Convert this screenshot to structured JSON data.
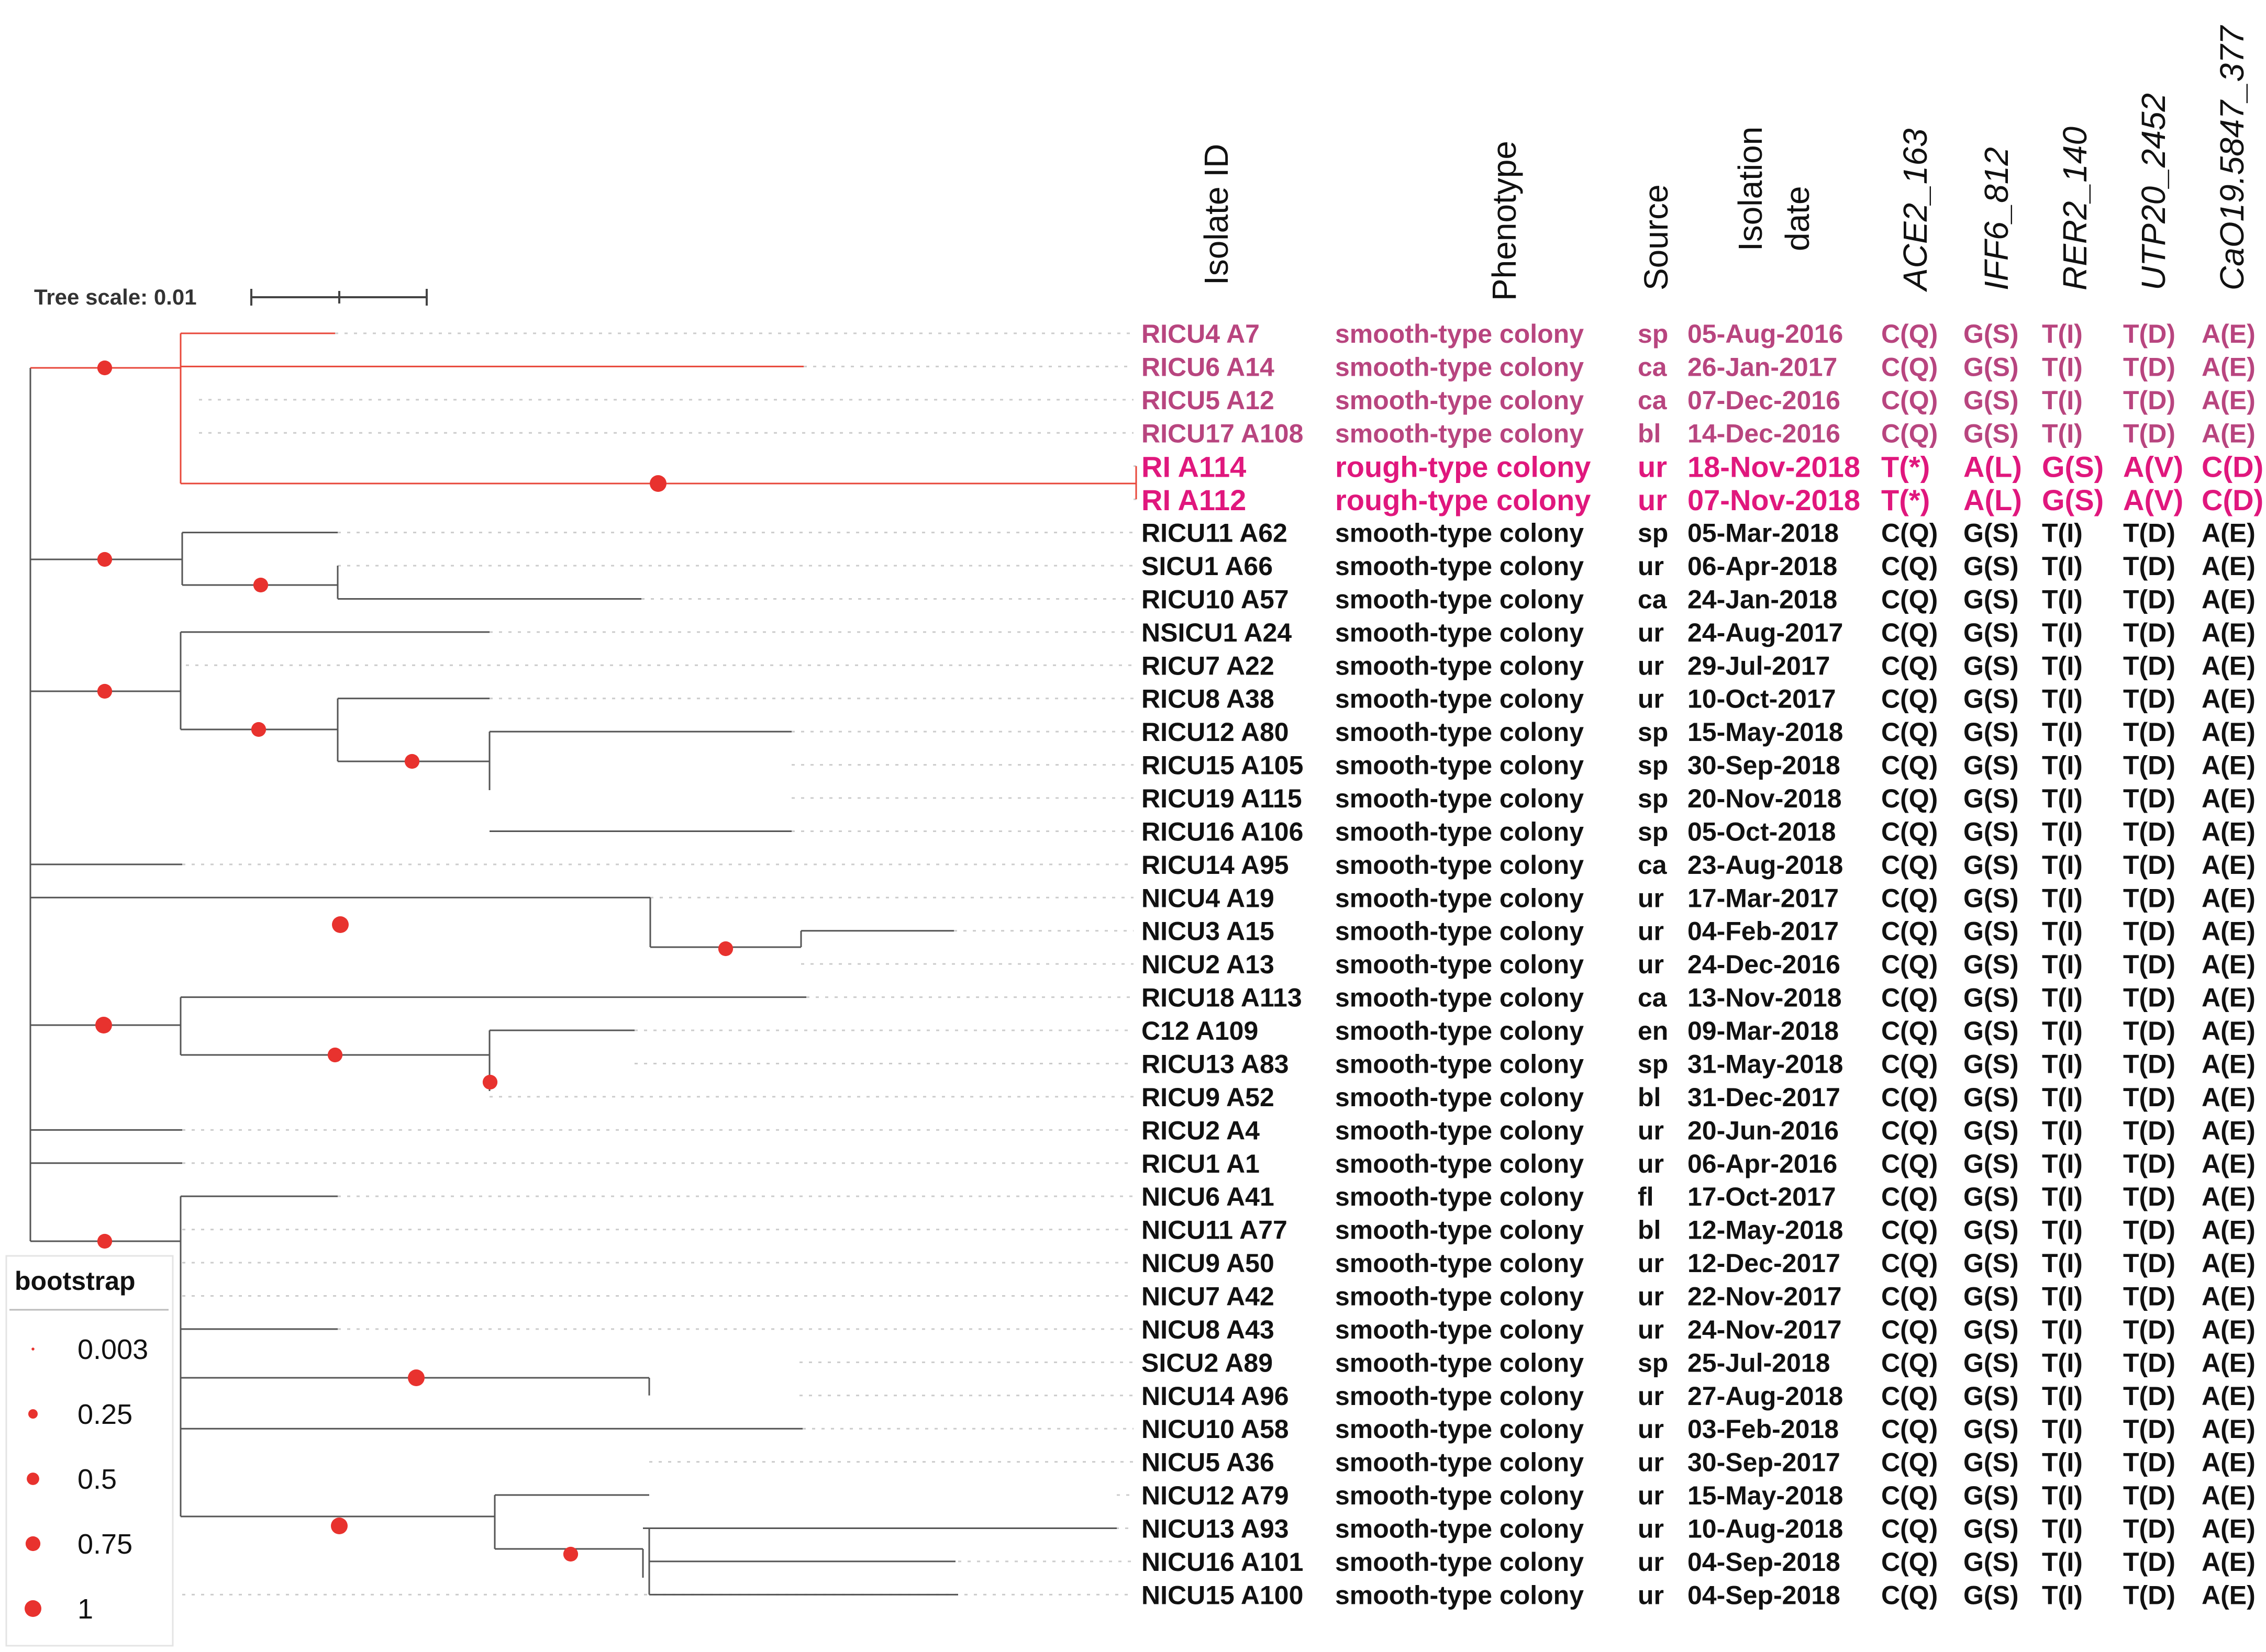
{
  "tree_scale": {
    "label": "Tree scale: 0.01"
  },
  "headers": [
    {
      "key": "isolate",
      "label": "Isolate ID",
      "italic": false
    },
    {
      "key": "phenotype",
      "label": "Phenotype",
      "italic": false
    },
    {
      "key": "source",
      "label": "Source",
      "italic": false
    },
    {
      "key": "isolation_date_1",
      "label": "Isolation",
      "italic": false
    },
    {
      "key": "isolation_date_2",
      "label": "date",
      "italic": false
    },
    {
      "key": "ace2",
      "label": "ACE2_163",
      "italic": true
    },
    {
      "key": "iff6",
      "label": "IFF6_812",
      "italic": true
    },
    {
      "key": "rer2",
      "label": "RER2_140",
      "italic": true
    },
    {
      "key": "utp20",
      "label": "UTP20_2452",
      "italic": true
    },
    {
      "key": "cao19",
      "label": "CaO19.5847_377",
      "italic": true
    }
  ],
  "legend": {
    "title": "bootstrap",
    "items": [
      {
        "label": "0.003",
        "value": 0.003
      },
      {
        "label": "0.25",
        "value": 0.25
      },
      {
        "label": "0.5",
        "value": 0.5
      },
      {
        "label": "0.75",
        "value": 0.75
      },
      {
        "label": "1",
        "value": 1
      }
    ]
  },
  "colors": {
    "group_pink": "#b8457f",
    "group_magenta": "#e0177d",
    "default_text": "#111111",
    "branch": "#555555",
    "branch_red": "#e8473a",
    "node": "#e8322e",
    "dotted": "#cccccc"
  },
  "rows": [
    {
      "isolate": "RICU4 A7",
      "phenotype": "smooth-type colony",
      "source": "sp",
      "date": "05-Aug-2016",
      "ace2": "C(Q)",
      "iff6": "G(S)",
      "rer2": "T(I)",
      "utp20": "T(D)",
      "cao19": "A(E)",
      "group": "pink"
    },
    {
      "isolate": "RICU6 A14",
      "phenotype": "smooth-type colony",
      "source": "ca",
      "date": "26-Jan-2017",
      "ace2": "C(Q)",
      "iff6": "G(S)",
      "rer2": "T(I)",
      "utp20": "T(D)",
      "cao19": "A(E)",
      "group": "pink"
    },
    {
      "isolate": "RICU5 A12",
      "phenotype": "smooth-type colony",
      "source": "ca",
      "date": "07-Dec-2016",
      "ace2": "C(Q)",
      "iff6": "G(S)",
      "rer2": "T(I)",
      "utp20": "T(D)",
      "cao19": "A(E)",
      "group": "pink"
    },
    {
      "isolate": "RICU17 A108",
      "phenotype": "smooth-type colony",
      "source": "bl",
      "date": "14-Dec-2016",
      "ace2": "C(Q)",
      "iff6": "G(S)",
      "rer2": "T(I)",
      "utp20": "T(D)",
      "cao19": "A(E)",
      "group": "pink"
    },
    {
      "isolate": "RI A114",
      "phenotype": "rough-type colony",
      "source": "ur",
      "date": "18-Nov-2018",
      "ace2": "T(*)",
      "iff6": "A(L)",
      "rer2": "G(S)",
      "utp20": "A(V)",
      "cao19": "C(D)",
      "group": "magenta"
    },
    {
      "isolate": "RI A112",
      "phenotype": "rough-type colony",
      "source": "ur",
      "date": "07-Nov-2018",
      "ace2": "T(*)",
      "iff6": "A(L)",
      "rer2": "G(S)",
      "utp20": "A(V)",
      "cao19": "C(D)",
      "group": "magenta"
    },
    {
      "isolate": "RICU11 A62",
      "phenotype": "smooth-type colony",
      "source": "sp",
      "date": "05-Mar-2018",
      "ace2": "C(Q)",
      "iff6": "G(S)",
      "rer2": "T(I)",
      "utp20": "T(D)",
      "cao19": "A(E)",
      "group": "default"
    },
    {
      "isolate": "SICU1 A66",
      "phenotype": "smooth-type colony",
      "source": "ur",
      "date": "06-Apr-2018",
      "ace2": "C(Q)",
      "iff6": "G(S)",
      "rer2": "T(I)",
      "utp20": "T(D)",
      "cao19": "A(E)",
      "group": "default"
    },
    {
      "isolate": "RICU10 A57",
      "phenotype": "smooth-type colony",
      "source": "ca",
      "date": "24-Jan-2018",
      "ace2": "C(Q)",
      "iff6": "G(S)",
      "rer2": "T(I)",
      "utp20": "T(D)",
      "cao19": "A(E)",
      "group": "default"
    },
    {
      "isolate": "NSICU1 A24",
      "phenotype": "smooth-type colony",
      "source": "ur",
      "date": "24-Aug-2017",
      "ace2": "C(Q)",
      "iff6": "G(S)",
      "rer2": "T(I)",
      "utp20": "T(D)",
      "cao19": "A(E)",
      "group": "default"
    },
    {
      "isolate": "RICU7 A22",
      "phenotype": "smooth-type colony",
      "source": "ur",
      "date": "29-Jul-2017",
      "ace2": "C(Q)",
      "iff6": "G(S)",
      "rer2": "T(I)",
      "utp20": "T(D)",
      "cao19": "A(E)",
      "group": "default"
    },
    {
      "isolate": "RICU8 A38",
      "phenotype": "smooth-type colony",
      "source": "ur",
      "date": "10-Oct-2017",
      "ace2": "C(Q)",
      "iff6": "G(S)",
      "rer2": "T(I)",
      "utp20": "T(D)",
      "cao19": "A(E)",
      "group": "default"
    },
    {
      "isolate": "RICU12 A80",
      "phenotype": "smooth-type colony",
      "source": "sp",
      "date": "15-May-2018",
      "ace2": "C(Q)",
      "iff6": "G(S)",
      "rer2": "T(I)",
      "utp20": "T(D)",
      "cao19": "A(E)",
      "group": "default"
    },
    {
      "isolate": "RICU15 A105",
      "phenotype": "smooth-type colony",
      "source": "sp",
      "date": "30-Sep-2018",
      "ace2": "C(Q)",
      "iff6": "G(S)",
      "rer2": "T(I)",
      "utp20": "T(D)",
      "cao19": "A(E)",
      "group": "default"
    },
    {
      "isolate": "RICU19 A115",
      "phenotype": "smooth-type colony",
      "source": "sp",
      "date": "20-Nov-2018",
      "ace2": "C(Q)",
      "iff6": "G(S)",
      "rer2": "T(I)",
      "utp20": "T(D)",
      "cao19": "A(E)",
      "group": "default"
    },
    {
      "isolate": "RICU16 A106",
      "phenotype": "smooth-type colony",
      "source": "sp",
      "date": "05-Oct-2018",
      "ace2": "C(Q)",
      "iff6": "G(S)",
      "rer2": "T(I)",
      "utp20": "T(D)",
      "cao19": "A(E)",
      "group": "default"
    },
    {
      "isolate": "RICU14 A95",
      "phenotype": "smooth-type colony",
      "source": "ca",
      "date": "23-Aug-2018",
      "ace2": "C(Q)",
      "iff6": "G(S)",
      "rer2": "T(I)",
      "utp20": "T(D)",
      "cao19": "A(E)",
      "group": "default"
    },
    {
      "isolate": "NICU4 A19",
      "phenotype": "smooth-type colony",
      "source": "ur",
      "date": "17-Mar-2017",
      "ace2": "C(Q)",
      "iff6": "G(S)",
      "rer2": "T(I)",
      "utp20": "T(D)",
      "cao19": "A(E)",
      "group": "default"
    },
    {
      "isolate": "NICU3 A15",
      "phenotype": "smooth-type colony",
      "source": "ur",
      "date": "04-Feb-2017",
      "ace2": "C(Q)",
      "iff6": "G(S)",
      "rer2": "T(I)",
      "utp20": "T(D)",
      "cao19": "A(E)",
      "group": "default"
    },
    {
      "isolate": "NICU2 A13",
      "phenotype": "smooth-type colony",
      "source": "ur",
      "date": "24-Dec-2016",
      "ace2": "C(Q)",
      "iff6": "G(S)",
      "rer2": "T(I)",
      "utp20": "T(D)",
      "cao19": "A(E)",
      "group": "default"
    },
    {
      "isolate": "RICU18 A113",
      "phenotype": "smooth-type colony",
      "source": "ca",
      "date": "13-Nov-2018",
      "ace2": "C(Q)",
      "iff6": "G(S)",
      "rer2": "T(I)",
      "utp20": "T(D)",
      "cao19": "A(E)",
      "group": "default"
    },
    {
      "isolate": "C12 A109",
      "phenotype": "smooth-type colony",
      "source": "en",
      "date": "09-Mar-2018",
      "ace2": "C(Q)",
      "iff6": "G(S)",
      "rer2": "T(I)",
      "utp20": "T(D)",
      "cao19": "A(E)",
      "group": "default"
    },
    {
      "isolate": "RICU13 A83",
      "phenotype": "smooth-type colony",
      "source": "sp",
      "date": "31-May-2018",
      "ace2": "C(Q)",
      "iff6": "G(S)",
      "rer2": "T(I)",
      "utp20": "T(D)",
      "cao19": "A(E)",
      "group": "default"
    },
    {
      "isolate": "RICU9 A52",
      "phenotype": "smooth-type colony",
      "source": "bl",
      "date": "31-Dec-2017",
      "ace2": "C(Q)",
      "iff6": "G(S)",
      "rer2": "T(I)",
      "utp20": "T(D)",
      "cao19": "A(E)",
      "group": "default"
    },
    {
      "isolate": "RICU2 A4",
      "phenotype": "smooth-type colony",
      "source": "ur",
      "date": "20-Jun-2016",
      "ace2": "C(Q)",
      "iff6": "G(S)",
      "rer2": "T(I)",
      "utp20": "T(D)",
      "cao19": "A(E)",
      "group": "default"
    },
    {
      "isolate": "RICU1 A1",
      "phenotype": "smooth-type colony",
      "source": "ur",
      "date": "06-Apr-2016",
      "ace2": "C(Q)",
      "iff6": "G(S)",
      "rer2": "T(I)",
      "utp20": "T(D)",
      "cao19": "A(E)",
      "group": "default"
    },
    {
      "isolate": "NICU6 A41",
      "phenotype": "smooth-type colony",
      "source": "fl",
      "date": "17-Oct-2017",
      "ace2": "C(Q)",
      "iff6": "G(S)",
      "rer2": "T(I)",
      "utp20": "T(D)",
      "cao19": "A(E)",
      "group": "default"
    },
    {
      "isolate": "NICU11 A77",
      "phenotype": "smooth-type colony",
      "source": "bl",
      "date": "12-May-2018",
      "ace2": "C(Q)",
      "iff6": "G(S)",
      "rer2": "T(I)",
      "utp20": "T(D)",
      "cao19": "A(E)",
      "group": "default"
    },
    {
      "isolate": "NICU9 A50",
      "phenotype": "smooth-type colony",
      "source": "ur",
      "date": "12-Dec-2017",
      "ace2": "C(Q)",
      "iff6": "G(S)",
      "rer2": "T(I)",
      "utp20": "T(D)",
      "cao19": "A(E)",
      "group": "default"
    },
    {
      "isolate": "NICU7 A42",
      "phenotype": "smooth-type colony",
      "source": "ur",
      "date": "22-Nov-2017",
      "ace2": "C(Q)",
      "iff6": "G(S)",
      "rer2": "T(I)",
      "utp20": "T(D)",
      "cao19": "A(E)",
      "group": "default"
    },
    {
      "isolate": "NICU8 A43",
      "phenotype": "smooth-type colony",
      "source": "ur",
      "date": "24-Nov-2017",
      "ace2": "C(Q)",
      "iff6": "G(S)",
      "rer2": "T(I)",
      "utp20": "T(D)",
      "cao19": "A(E)",
      "group": "default"
    },
    {
      "isolate": "SICU2 A89",
      "phenotype": "smooth-type colony",
      "source": "sp",
      "date": "25-Jul-2018",
      "ace2": "C(Q)",
      "iff6": "G(S)",
      "rer2": "T(I)",
      "utp20": "T(D)",
      "cao19": "A(E)",
      "group": "default"
    },
    {
      "isolate": "NICU14 A96",
      "phenotype": "smooth-type colony",
      "source": "ur",
      "date": "27-Aug-2018",
      "ace2": "C(Q)",
      "iff6": "G(S)",
      "rer2": "T(I)",
      "utp20": "T(D)",
      "cao19": "A(E)",
      "group": "default"
    },
    {
      "isolate": "NICU10 A58",
      "phenotype": "smooth-type colony",
      "source": "ur",
      "date": "03-Feb-2018",
      "ace2": "C(Q)",
      "iff6": "G(S)",
      "rer2": "T(I)",
      "utp20": "T(D)",
      "cao19": "A(E)",
      "group": "default"
    },
    {
      "isolate": "NICU5 A36",
      "phenotype": "smooth-type colony",
      "source": "ur",
      "date": "30-Sep-2017",
      "ace2": "C(Q)",
      "iff6": "G(S)",
      "rer2": "T(I)",
      "utp20": "T(D)",
      "cao19": "A(E)",
      "group": "default"
    },
    {
      "isolate": "NICU12 A79",
      "phenotype": "smooth-type colony",
      "source": "ur",
      "date": "15-May-2018",
      "ace2": "C(Q)",
      "iff6": "G(S)",
      "rer2": "T(I)",
      "utp20": "T(D)",
      "cao19": "A(E)",
      "group": "default"
    },
    {
      "isolate": "NICU13 A93",
      "phenotype": "smooth-type colony",
      "source": "ur",
      "date": "10-Aug-2018",
      "ace2": "C(Q)",
      "iff6": "G(S)",
      "rer2": "T(I)",
      "utp20": "T(D)",
      "cao19": "A(E)",
      "group": "default"
    },
    {
      "isolate": "NICU16 A101",
      "phenotype": "smooth-type colony",
      "source": "ur",
      "date": "04-Sep-2018",
      "ace2": "C(Q)",
      "iff6": "G(S)",
      "rer2": "T(I)",
      "utp20": "T(D)",
      "cao19": "A(E)",
      "group": "default"
    },
    {
      "isolate": "NICU15 A100",
      "phenotype": "smooth-type colony",
      "source": "ur",
      "date": "04-Sep-2018",
      "ace2": "C(Q)",
      "iff6": "G(S)",
      "rer2": "T(I)",
      "utp20": "T(D)",
      "cao19": "A(E)",
      "group": "default"
    }
  ]
}
